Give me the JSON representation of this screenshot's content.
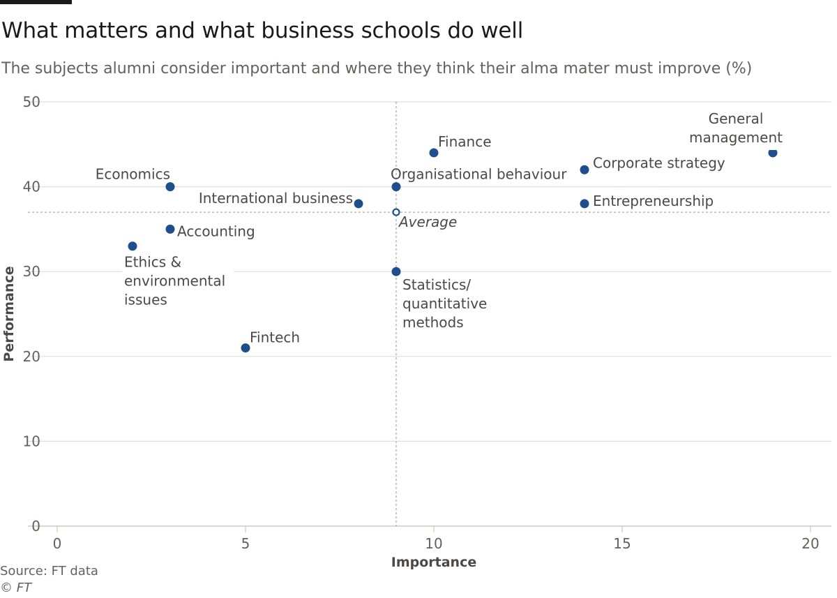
{
  "title": "What matters and what business schools do well",
  "subtitle": "The subjects alumni consider important and where they think their alma mater must improve (%)",
  "source": "Source: FT data",
  "copyright": "© FT",
  "colors": {
    "point": "#1f4e8c",
    "gridline": "#e6dcd5",
    "axis_text": "#66605c",
    "reference_line": "#9a9592"
  },
  "chart_data": {
    "type": "scatter",
    "title": "What matters and what business schools do well",
    "xlabel": "Importance",
    "ylabel": "Performance",
    "xlim": [
      0,
      20.6
    ],
    "ylim": [
      0,
      50
    ],
    "xticks": [
      0,
      5,
      10,
      15,
      20
    ],
    "yticks": [
      0,
      10,
      20,
      30,
      40,
      50
    ],
    "grid": "horizontal",
    "points": [
      {
        "label": "Economics",
        "x": 3,
        "y": 40
      },
      {
        "label": "Accounting",
        "x": 3,
        "y": 35
      },
      {
        "label": "Ethics & environmental issues",
        "label_lines": [
          "Ethics &",
          "environmental",
          "issues"
        ],
        "x": 2,
        "y": 33
      },
      {
        "label": "Fintech",
        "x": 5,
        "y": 21
      },
      {
        "label": "International business",
        "x": 8,
        "y": 38
      },
      {
        "label": "Organisational behaviour",
        "x": 9,
        "y": 40
      },
      {
        "label": "Statistics/ quantitative methods",
        "label_lines": [
          "Statistics/",
          "quantitative",
          "methods"
        ],
        "x": 9,
        "y": 30
      },
      {
        "label": "Finance",
        "x": 10,
        "y": 44
      },
      {
        "label": "Corporate strategy",
        "x": 14,
        "y": 42
      },
      {
        "label": "Entrepreneurship",
        "x": 14,
        "y": 38
      },
      {
        "label": "General management",
        "label_lines": [
          "General",
          "management"
        ],
        "x": 19,
        "y": 44
      }
    ],
    "average": {
      "label": "Average",
      "x": 9,
      "y": 37
    }
  }
}
